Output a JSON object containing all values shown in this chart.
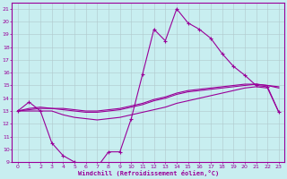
{
  "xlabel": "Windchill (Refroidissement éolien,°C)",
  "background_color": "#c8eef0",
  "line_color": "#990099",
  "grid_color": "#b0c8cc",
  "xlim": [
    -0.5,
    23.5
  ],
  "ylim": [
    9,
    21.5
  ],
  "yticks": [
    9,
    10,
    11,
    12,
    13,
    14,
    15,
    16,
    17,
    18,
    19,
    20,
    21
  ],
  "xticks": [
    0,
    1,
    2,
    3,
    4,
    5,
    6,
    7,
    8,
    9,
    10,
    11,
    12,
    13,
    14,
    15,
    16,
    17,
    18,
    19,
    20,
    21,
    22,
    23
  ],
  "line1_x": [
    0,
    1,
    2,
    3,
    4,
    5,
    6,
    7,
    8,
    9,
    10,
    11,
    12,
    13,
    14,
    15,
    16,
    17,
    18,
    19,
    20,
    21,
    22,
    23
  ],
  "line1_y": [
    13.0,
    13.7,
    13.0,
    10.5,
    9.5,
    9.0,
    8.8,
    8.6,
    9.8,
    9.8,
    12.4,
    15.9,
    19.4,
    18.5,
    21.0,
    19.9,
    19.4,
    18.7,
    17.5,
    16.5,
    15.8,
    15.0,
    14.9,
    12.9
  ],
  "line2_x": [
    0,
    1,
    2,
    3,
    4,
    5,
    6,
    7,
    8,
    9,
    10,
    11,
    12,
    13,
    14,
    15,
    16,
    17,
    18,
    19,
    20,
    21,
    22,
    23
  ],
  "line2_y": [
    13.0,
    13.2,
    13.3,
    13.2,
    13.1,
    13.0,
    12.9,
    12.9,
    13.0,
    13.1,
    13.3,
    13.5,
    13.8,
    14.0,
    14.3,
    14.5,
    14.6,
    14.7,
    14.8,
    14.9,
    15.0,
    15.1,
    15.0,
    14.8
  ],
  "line3_x": [
    0,
    1,
    2,
    3,
    4,
    5,
    6,
    7,
    8,
    9,
    10,
    11,
    12,
    13,
    14,
    15,
    16,
    17,
    18,
    19,
    20,
    21,
    22,
    23
  ],
  "line3_y": [
    13.0,
    13.1,
    13.2,
    13.2,
    13.2,
    13.1,
    13.0,
    13.0,
    13.1,
    13.2,
    13.4,
    13.6,
    13.9,
    14.1,
    14.4,
    14.6,
    14.7,
    14.8,
    14.9,
    15.0,
    15.1,
    15.1,
    15.0,
    14.9
  ],
  "line4_x": [
    0,
    1,
    2,
    3,
    4,
    5,
    6,
    7,
    8,
    9,
    10,
    11,
    12,
    13,
    14,
    15,
    16,
    17,
    18,
    19,
    20,
    21,
    22,
    23
  ],
  "line4_y": [
    13.0,
    13.0,
    13.0,
    13.0,
    12.7,
    12.5,
    12.4,
    12.3,
    12.4,
    12.5,
    12.7,
    12.9,
    13.1,
    13.3,
    13.6,
    13.8,
    14.0,
    14.2,
    14.4,
    14.6,
    14.8,
    14.9,
    14.8,
    12.9
  ]
}
